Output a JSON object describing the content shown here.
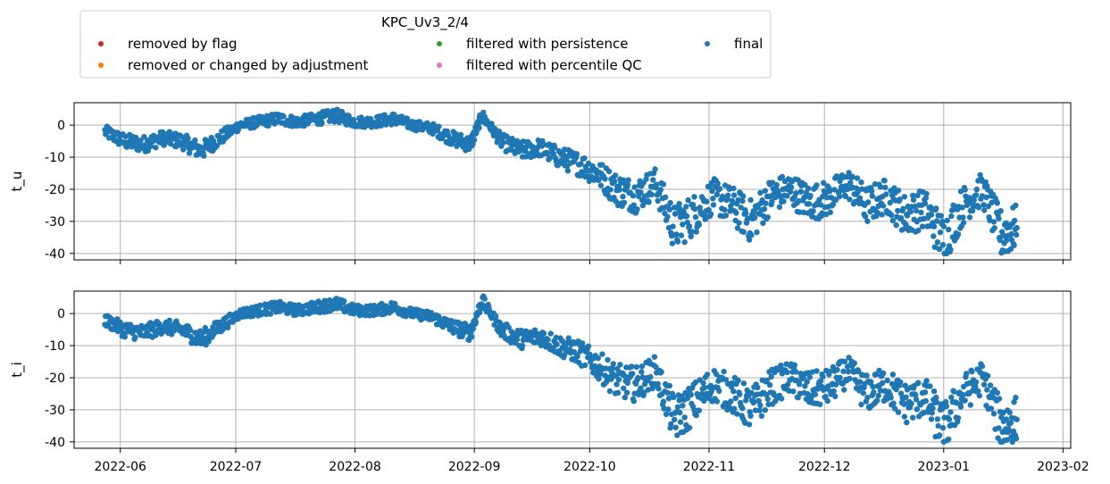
{
  "chart_data": {
    "type": "scatter",
    "legend": {
      "title": "KPC_Uv3_2/4",
      "placement": "top-left",
      "entries": [
        {
          "label": "removed by flag",
          "color": "#d62728"
        },
        {
          "label": "removed or changed by adjustment",
          "color": "#ff7f0e"
        },
        {
          "label": "filtered with persistence",
          "color": "#2ca02c"
        },
        {
          "label": "filtered with percentile QC",
          "color": "#e377c2"
        },
        {
          "label": "final",
          "color": "#1f77b4"
        }
      ]
    },
    "xaxis": {
      "range": [
        "2022-05-20",
        "2023-02-03"
      ],
      "ticks": [
        "2022-06-01",
        "2022-07-01",
        "2022-08-01",
        "2022-09-01",
        "2022-10-01",
        "2022-11-01",
        "2022-12-01",
        "2023-01-01",
        "2023-02-01"
      ],
      "tick_labels": [
        "2022-06",
        "2022-07",
        "2022-08",
        "2022-09",
        "2022-10",
        "2022-11",
        "2022-12",
        "2023-01",
        "2023-02"
      ]
    },
    "grid": true,
    "subplots": [
      {
        "ylabel": "t_u",
        "ylim": [
          -42,
          7
        ],
        "yticks": [
          0,
          -10,
          -20,
          -30,
          -40
        ],
        "series": [
          {
            "name": "final",
            "color": "#1f77b4",
            "x": [
              "2022-05-28",
              "2022-06-02",
              "2022-06-07",
              "2022-06-12",
              "2022-06-17",
              "2022-06-22",
              "2022-06-27",
              "2022-07-02",
              "2022-07-07",
              "2022-07-12",
              "2022-07-17",
              "2022-07-22",
              "2022-07-27",
              "2022-08-01",
              "2022-08-06",
              "2022-08-11",
              "2022-08-16",
              "2022-08-21",
              "2022-08-26",
              "2022-08-31",
              "2022-09-03",
              "2022-09-08",
              "2022-09-13",
              "2022-09-18",
              "2022-09-23",
              "2022-09-28",
              "2022-10-03",
              "2022-10-08",
              "2022-10-13",
              "2022-10-18",
              "2022-10-23",
              "2022-10-28",
              "2022-11-02",
              "2022-11-07",
              "2022-11-12",
              "2022-11-17",
              "2022-11-22",
              "2022-11-27",
              "2022-12-02",
              "2022-12-07",
              "2022-12-12",
              "2022-12-17",
              "2022-12-22",
              "2022-12-27",
              "2023-01-01",
              "2023-01-06",
              "2023-01-11",
              "2023-01-16",
              "2023-01-20"
            ],
            "y": [
              -2,
              -5,
              -6,
              -4,
              -5,
              -8,
              -4,
              0,
              1,
              2,
              1,
              2,
              3,
              1,
              1,
              2,
              0,
              -1,
              -4,
              -6,
              3,
              -5,
              -8,
              -7,
              -10,
              -12,
              -15,
              -20,
              -22,
              -18,
              -32,
              -28,
              -22,
              -25,
              -30,
              -22,
              -20,
              -24,
              -23,
              -18,
              -25,
              -22,
              -28,
              -26,
              -36,
              -25,
              -20,
              -34,
              -32
            ]
          }
        ]
      },
      {
        "ylabel": "t_i",
        "ylim": [
          -42,
          7
        ],
        "yticks": [
          0,
          -10,
          -20,
          -30,
          -40
        ],
        "series": [
          {
            "name": "final",
            "color": "#1f77b4",
            "x": [
              "2022-05-28",
              "2022-06-02",
              "2022-06-07",
              "2022-06-12",
              "2022-06-17",
              "2022-06-22",
              "2022-06-27",
              "2022-07-02",
              "2022-07-07",
              "2022-07-12",
              "2022-07-17",
              "2022-07-22",
              "2022-07-27",
              "2022-08-01",
              "2022-08-06",
              "2022-08-11",
              "2022-08-16",
              "2022-08-21",
              "2022-08-26",
              "2022-08-31",
              "2022-09-03",
              "2022-09-08",
              "2022-09-13",
              "2022-09-18",
              "2022-09-23",
              "2022-09-28",
              "2022-10-03",
              "2022-10-08",
              "2022-10-13",
              "2022-10-18",
              "2022-10-23",
              "2022-10-28",
              "2022-11-02",
              "2022-11-07",
              "2022-11-12",
              "2022-11-17",
              "2022-11-22",
              "2022-11-27",
              "2022-12-02",
              "2022-12-07",
              "2022-12-12",
              "2022-12-17",
              "2022-12-22",
              "2022-12-27",
              "2023-01-01",
              "2023-01-06",
              "2023-01-11",
              "2023-01-16",
              "2023-01-20"
            ],
            "y": [
              -2,
              -5,
              -6,
              -4,
              -5,
              -8,
              -4,
              0,
              1,
              2,
              1,
              2,
              3,
              1,
              1,
              2,
              0,
              -1,
              -4,
              -6,
              4,
              -5,
              -8,
              -7,
              -10,
              -12,
              -16,
              -21,
              -22,
              -18,
              -33,
              -28,
              -22,
              -25,
              -30,
              -23,
              -20,
              -24,
              -23,
              -18,
              -25,
              -22,
              -28,
              -26,
              -36,
              -25,
              -20,
              -35,
              -33
            ]
          }
        ]
      }
    ]
  }
}
